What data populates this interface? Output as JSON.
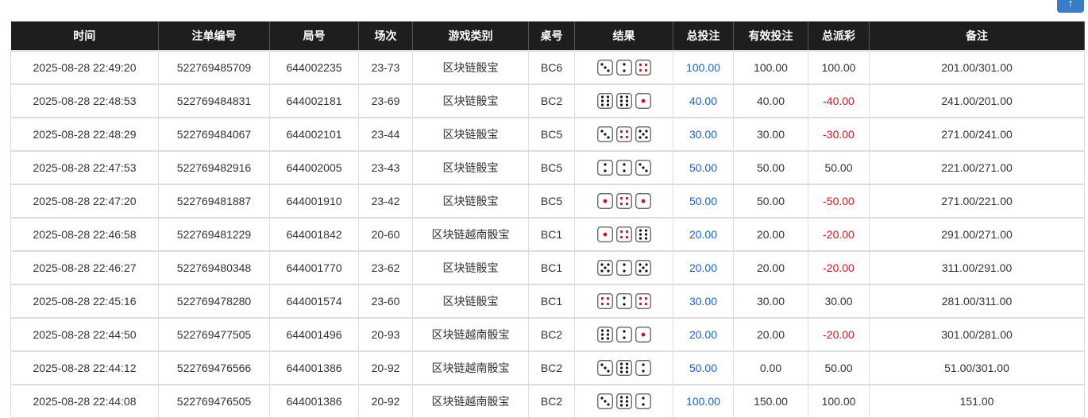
{
  "top_button": {
    "icon": "arrow-up-icon",
    "label": "↑",
    "color": "#3a7dc4"
  },
  "headers": [
    "时间",
    "注单编号",
    "局号",
    "场次",
    "游戏类别",
    "桌号",
    "结果",
    "总投注",
    "有效投注",
    "总派彩",
    "备注"
  ],
  "rows": [
    {
      "time": "2025-08-28 22:49:20",
      "order": "522769485709",
      "round": "644002235",
      "session": "23-73",
      "game": "区块链骰宝",
      "table": "BC6",
      "dice": [
        3,
        2,
        4
      ],
      "bet": "100.00",
      "valid": "100.00",
      "payout": "100.00",
      "note": "201.00/301.00"
    },
    {
      "time": "2025-08-28 22:48:53",
      "order": "522769484831",
      "round": "644002181",
      "session": "23-69",
      "game": "区块链骰宝",
      "table": "BC2",
      "dice": [
        6,
        6,
        1
      ],
      "bet": "40.00",
      "valid": "40.00",
      "payout": "-40.00",
      "note": "241.00/201.00"
    },
    {
      "time": "2025-08-28 22:48:29",
      "order": "522769484067",
      "round": "644002101",
      "session": "23-44",
      "game": "区块链骰宝",
      "table": "BC5",
      "dice": [
        3,
        4,
        5
      ],
      "bet": "30.00",
      "valid": "30.00",
      "payout": "-30.00",
      "note": "271.00/241.00"
    },
    {
      "time": "2025-08-28 22:47:53",
      "order": "522769482916",
      "round": "644002005",
      "session": "23-43",
      "game": "区块链骰宝",
      "table": "BC5",
      "dice": [
        2,
        2,
        3
      ],
      "bet": "50.00",
      "valid": "50.00",
      "payout": "50.00",
      "note": "221.00/271.00"
    },
    {
      "time": "2025-08-28 22:47:20",
      "order": "522769481887",
      "round": "644001910",
      "session": "23-42",
      "game": "区块链骰宝",
      "table": "BC5",
      "dice": [
        1,
        4,
        1
      ],
      "bet": "50.00",
      "valid": "50.00",
      "payout": "-50.00",
      "note": "271.00/221.00"
    },
    {
      "time": "2025-08-28 22:46:58",
      "order": "522769481229",
      "round": "644001842",
      "session": "20-60",
      "game": "区块链越南骰宝",
      "table": "BC1",
      "dice": [
        1,
        4,
        6
      ],
      "bet": "20.00",
      "valid": "20.00",
      "payout": "-20.00",
      "note": "291.00/271.00"
    },
    {
      "time": "2025-08-28 22:46:27",
      "order": "522769480348",
      "round": "644001770",
      "session": "23-62",
      "game": "区块链骰宝",
      "table": "BC1",
      "dice": [
        5,
        2,
        5
      ],
      "bet": "20.00",
      "valid": "20.00",
      "payout": "-20.00",
      "note": "311.00/291.00"
    },
    {
      "time": "2025-08-28 22:45:16",
      "order": "522769478280",
      "round": "644001574",
      "session": "23-60",
      "game": "区块链骰宝",
      "table": "BC1",
      "dice": [
        4,
        2,
        4
      ],
      "bet": "30.00",
      "valid": "30.00",
      "payout": "30.00",
      "note": "281.00/311.00"
    },
    {
      "time": "2025-08-28 22:44:50",
      "order": "522769477505",
      "round": "644001496",
      "session": "20-93",
      "game": "区块链越南骰宝",
      "table": "BC2",
      "dice": [
        6,
        2,
        1
      ],
      "bet": "20.00",
      "valid": "20.00",
      "payout": "-20.00",
      "note": "301.00/281.00"
    },
    {
      "time": "2025-08-28 22:44:12",
      "order": "522769476566",
      "round": "644001386",
      "session": "20-92",
      "game": "区块链越南骰宝",
      "table": "BC2",
      "dice": [
        3,
        6,
        2
      ],
      "bet": "50.00",
      "valid": "0.00",
      "payout": "50.00",
      "note": "51.00/301.00"
    },
    {
      "time": "2025-08-28 22:44:08",
      "order": "522769476505",
      "round": "644001386",
      "session": "20-92",
      "game": "区块链越南骰宝",
      "table": "BC2",
      "dice": [
        3,
        6,
        2
      ],
      "bet": "100.00",
      "valid": "150.00",
      "payout": "100.00",
      "note": "151.00"
    }
  ],
  "colors": {
    "header_bg": "#1e1e1e",
    "bet_text": "#1a5fd6",
    "negative_payout": "#e0101a",
    "red_pips": "#c0161c"
  }
}
